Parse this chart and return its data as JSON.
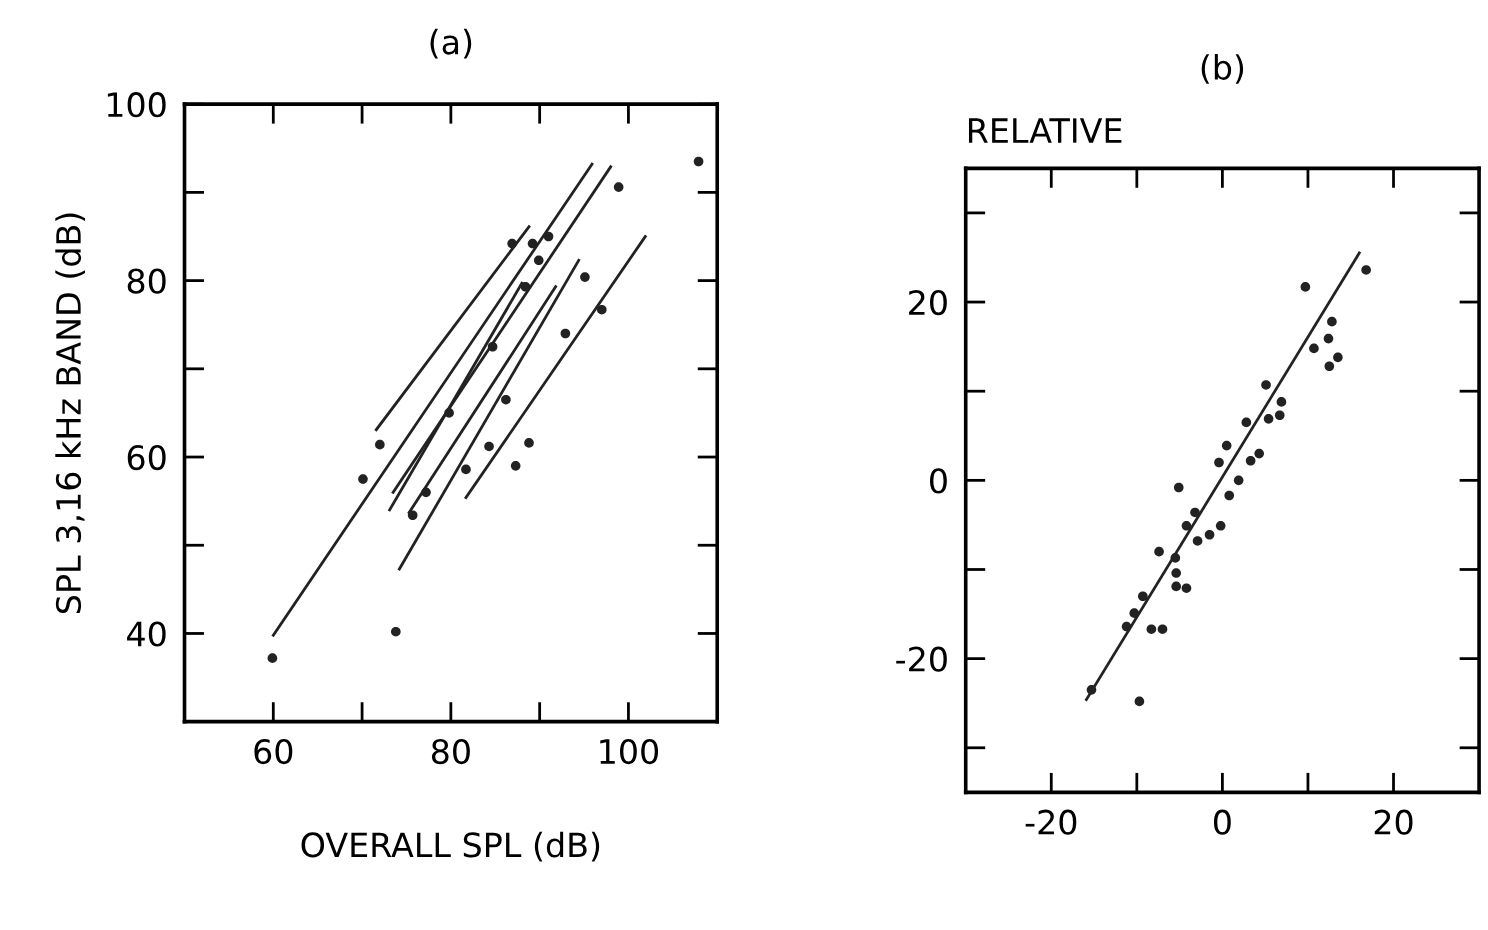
{
  "chart_data": [
    {
      "type": "scatter",
      "title": "(a)",
      "xlabel": "OVERALL SPL (dB)",
      "ylabel": "SPL 3,16 kHz BAND (dB)",
      "xlim": [
        50,
        110
      ],
      "ylim": [
        30,
        100
      ],
      "xticks": [
        60,
        {
          "value": 70,
          "label": null
        },
        80,
        {
          "value": 90,
          "label": null
        },
        100
      ],
      "yticks": [
        40,
        {
          "value": 50,
          "label": null
        },
        60,
        {
          "value": 70,
          "label": null
        },
        80,
        {
          "value": 90,
          "label": null
        },
        100
      ],
      "grid": false,
      "legend": false,
      "series": [
        {
          "marker": "circle",
          "color": "#222222",
          "x": [
            59.9,
            73.8,
            70.1,
            72,
            107.9,
            98.9,
            95.1,
            92.9,
            97,
            88.8,
            87.3,
            84.3,
            84.7,
            89.2,
            91,
            86.9,
            89.9,
            88.4,
            81.7,
            75.7,
            77.2,
            79.8,
            86.2
          ],
          "values": [
            37.2,
            40.2,
            57.5,
            61.4,
            93.5,
            90.6,
            80.4,
            74,
            76.7,
            61.6,
            59,
            61.2,
            72.5,
            84.2,
            85,
            84.2,
            82.3,
            79.3,
            58.6,
            53.4,
            56,
            65,
            66.5
          ]
        },
        {
          "type": "line",
          "color": "#222222",
          "x": [
            60,
            95.9
          ],
          "values": [
            39.8,
            93.2
          ]
        },
        {
          "type": "line",
          "color": "#222222",
          "x": [
            71.6,
            88.8
          ],
          "values": [
            63.1,
            86.1
          ]
        },
        {
          "type": "line",
          "color": "#222222",
          "x": [
            73.5,
            98
          ],
          "values": [
            56,
            92.9
          ]
        },
        {
          "type": "line",
          "color": "#222222",
          "x": [
            74.2,
            94.4
          ],
          "values": [
            47.3,
            82.3
          ]
        },
        {
          "type": "line",
          "color": "#222222",
          "x": [
            75.3,
            91.8
          ],
          "values": [
            53.7,
            79.3
          ]
        },
        {
          "type": "line",
          "color": "#222222",
          "x": [
            73.1,
            88
          ],
          "values": [
            54,
            79.7
          ]
        },
        {
          "type": "line",
          "color": "#222222",
          "x": [
            81.7,
            101.9
          ],
          "values": [
            55.4,
            85
          ]
        }
      ]
    },
    {
      "type": "scatter",
      "title": "(b)",
      "subtitle": "RELATIVE",
      "xlim": [
        -30,
        30
      ],
      "ylim": [
        -35,
        35
      ],
      "xticks": [
        -20,
        {
          "value": -10,
          "label": null
        },
        0,
        {
          "value": 10,
          "label": null
        },
        20
      ],
      "yticks": [
        {
          "value": -30,
          "label": null
        },
        -20,
        {
          "value": -10,
          "label": null
        },
        0,
        {
          "value": 10,
          "label": null
        },
        20,
        {
          "value": 30,
          "label": null
        }
      ],
      "grid": false,
      "legend": false,
      "series": [
        {
          "marker": "circle",
          "color": "#222222",
          "x": [
            9.7,
            16.8,
            12.8,
            12.4,
            12.5,
            13.5,
            10.7,
            6.9,
            6.7,
            5.1,
            5.4,
            2.8,
            4.3,
            3.3,
            1.9,
            0.8,
            0.5,
            -0.4,
            -0.2,
            -1.5,
            -2.9,
            -3.2,
            -4.2,
            -5.1,
            -7.4,
            -5.5,
            -5.4,
            -5.4,
            -4.2,
            -9.3,
            -10.3,
            -8.3,
            -7,
            -9.7,
            -15.3,
            -11.2
          ],
          "values": [
            21.7,
            23.6,
            17.8,
            15.9,
            12.8,
            13.8,
            14.8,
            8.8,
            7.3,
            10.7,
            6.9,
            6.5,
            3,
            2.2,
            0,
            -1.7,
            3.9,
            2,
            -5.1,
            -6.1,
            -6.8,
            -3.6,
            -5.1,
            -0.8,
            -8,
            -8.7,
            -10.4,
            -11.9,
            -12.1,
            -13,
            -14.9,
            -16.7,
            -16.7,
            -24.8,
            -23.5,
            -16.4
          ]
        },
        {
          "type": "line",
          "color": "#222222",
          "x": [
            -15.9,
            16
          ],
          "values": [
            -24.6,
            25.5
          ]
        }
      ]
    }
  ]
}
